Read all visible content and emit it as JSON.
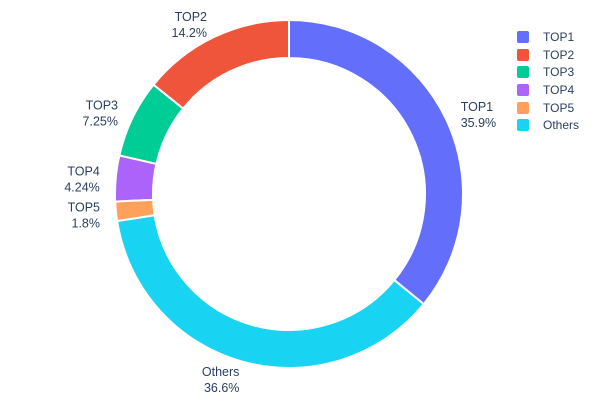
{
  "chart_data": {
    "type": "pie",
    "subtype": "donut",
    "hole": 0.78,
    "title": "",
    "legend_position": "right",
    "text_color": "#2a3f5f",
    "background_color": "#ffffff",
    "categories": [
      "TOP1",
      "TOP2",
      "TOP3",
      "TOP4",
      "TOP5",
      "Others"
    ],
    "values": [
      35.9,
      14.2,
      7.25,
      4.24,
      1.8,
      36.6
    ],
    "slices": [
      {
        "label": "TOP1",
        "value": 35.9,
        "percent_label": "35.9%",
        "color": "#636EFA"
      },
      {
        "label": "TOP2",
        "value": 14.2,
        "percent_label": "14.2%",
        "color": "#EF553B"
      },
      {
        "label": "TOP3",
        "value": 7.25,
        "percent_label": "7.25%",
        "color": "#00CC96"
      },
      {
        "label": "TOP4",
        "value": 4.24,
        "percent_label": "4.24%",
        "color": "#AB63FA"
      },
      {
        "label": "TOP5",
        "value": 1.8,
        "percent_label": "1.8%",
        "color": "#FFA15A"
      },
      {
        "label": "Others",
        "value": 36.6,
        "percent_label": "36.6%",
        "color": "#19D3F3"
      }
    ]
  }
}
